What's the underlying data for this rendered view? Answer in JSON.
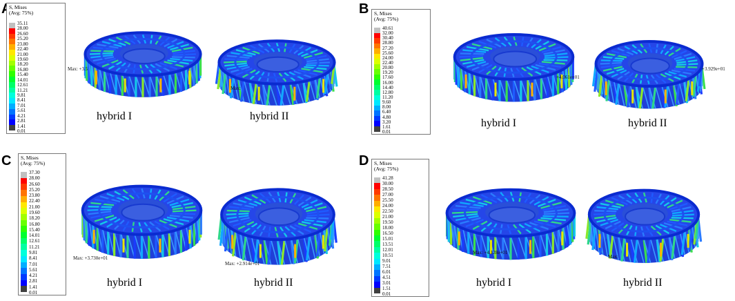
{
  "legend_title": "S, Mises\n(Avg: 75%)",
  "legend_colors": [
    "#c0c0c0",
    "#ff0000",
    "#ff3a00",
    "#ff7400",
    "#ffae00",
    "#ffe800",
    "#dcff00",
    "#a2ff00",
    "#68ff00",
    "#2eff00",
    "#00ff2e",
    "#00ff68",
    "#00ffa2",
    "#00ffdc",
    "#00e8ff",
    "#00aeff",
    "#0074ff",
    "#003aff",
    "#0000ff",
    "#404040"
  ],
  "panels": [
    {
      "letter": "A",
      "legend_values": [
        "35.11",
        "28.00",
        "26.60",
        "25.20",
        "23.80",
        "22.40",
        "21.00",
        "19.60",
        "18.20",
        "16.80",
        "15.40",
        "14.01",
        "12.61",
        "11.21",
        "9.81",
        "8.41",
        "7.01",
        "5.61",
        "4.21",
        "2.81",
        "1.41",
        "0.01"
      ],
      "left_caption": "hybrid I",
      "right_caption": "hybrid II",
      "left_annot": "Max: +3.5",
      "right_annot": "Max:"
    },
    {
      "letter": "B",
      "legend_values": [
        "40.61",
        "32.00",
        "30.40",
        "28.80",
        "27.20",
        "25.60",
        "24.00",
        "22.40",
        "20.80",
        "19.20",
        "17.60",
        "16.00",
        "14.40",
        "12.80",
        "11.20",
        "9.60",
        "8.00",
        "6.40",
        "4.80",
        "3.20",
        "1.61",
        "0.01"
      ],
      "left_caption": "hybrid I",
      "right_caption": "hybrid II",
      "left_annot": "+4.061e+01",
      "right_annot": "+3.929e+01"
    },
    {
      "letter": "C",
      "legend_values": [
        "37.30",
        "28.00",
        "26.60",
        "25.20",
        "23.80",
        "22.40",
        "21.00",
        "19.60",
        "18.20",
        "16.80",
        "15.40",
        "14.01",
        "12.61",
        "11.21",
        "9.81",
        "8.41",
        "7.01",
        "5.61",
        "4.21",
        "2.81",
        "1.41",
        "0.01"
      ],
      "left_caption": "hybrid I",
      "right_caption": "hybrid II",
      "left_annot": "Max: +3.730e+01",
      "right_annot": "Max: +2.914e+01"
    },
    {
      "letter": "D",
      "legend_values": [
        "41.28",
        "30.00",
        "28.50",
        "27.00",
        "25.50",
        "24.00",
        "22.50",
        "21.00",
        "19.50",
        "18.00",
        "16.50",
        "15.01",
        "13.51",
        "12.01",
        "10.51",
        "9.01",
        "7.51",
        "6.01",
        "4.51",
        "3.01",
        "1.51",
        "0.01"
      ],
      "left_caption": "hybrid I",
      "right_caption": "hybrid II",
      "left_annot": "Max: +4.128e+01",
      "right_annot": "Max:"
    }
  ]
}
